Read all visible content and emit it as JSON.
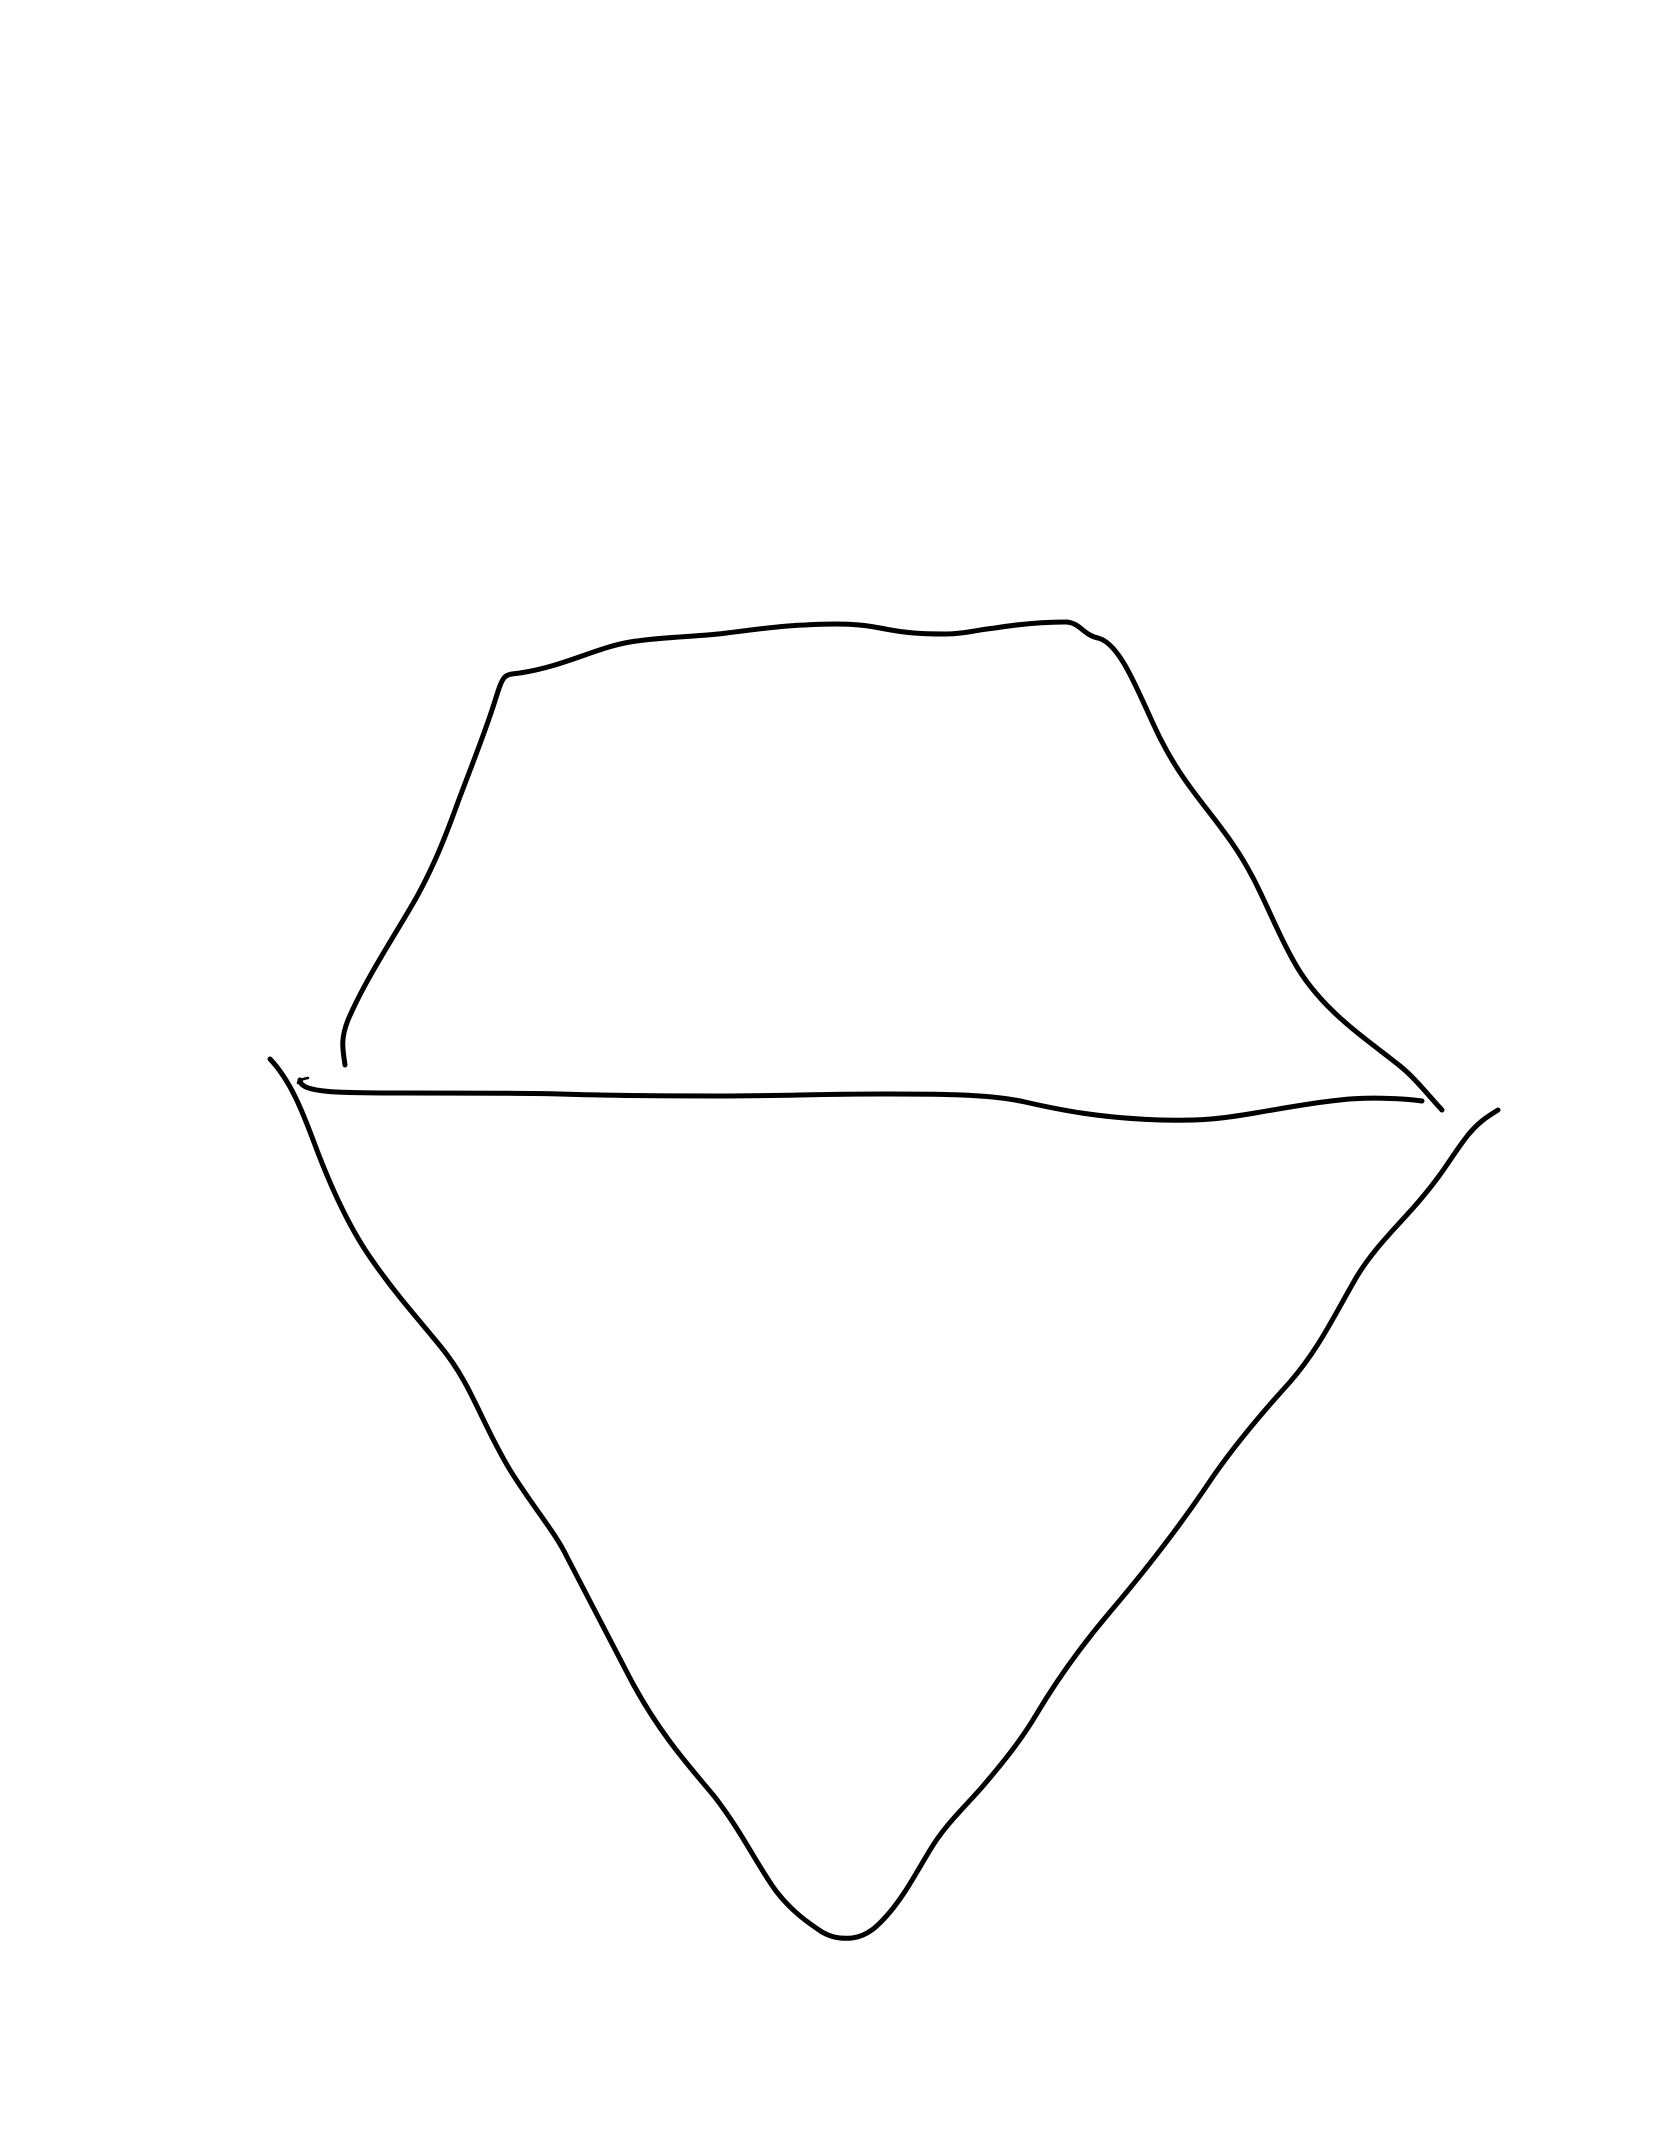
{
  "canvas": {
    "background_color": "#ffffff",
    "ink_color": "#000000"
  },
  "drawing": {
    "subject": "iceberg-line-drawing",
    "strokes": [
      "iceberg-top-outline",
      "waterline",
      "waterline-hook",
      "iceberg-bottom-outline"
    ]
  }
}
